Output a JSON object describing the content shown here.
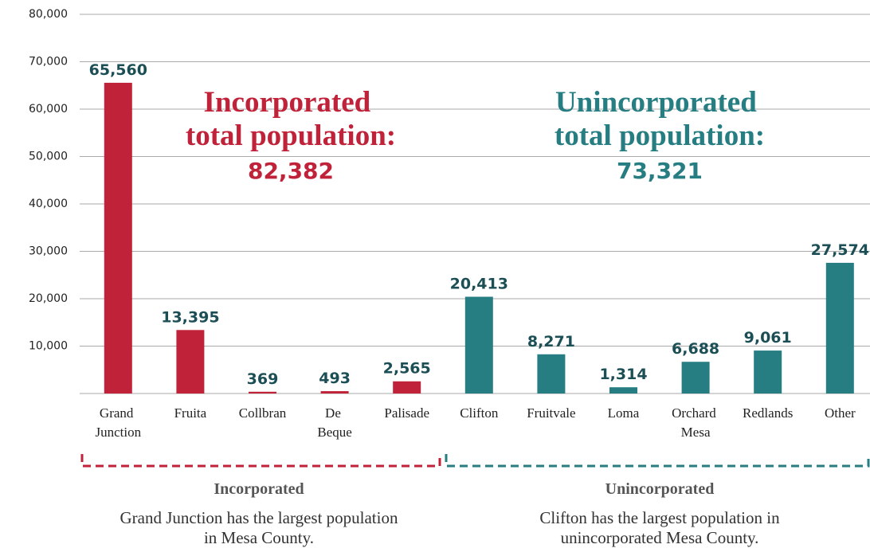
{
  "chart_data": {
    "type": "bar",
    "categories": [
      "Grand Junction",
      "Fruita",
      "Collbran",
      "De Beque",
      "Palisade",
      "Clifton",
      "Fruitvale",
      "Loma",
      "Orchard Mesa",
      "Redlands",
      "Other"
    ],
    "values": [
      65560,
      13395,
      369,
      493,
      2565,
      20413,
      8271,
      1314,
      6688,
      9061,
      27574
    ],
    "value_labels": [
      "65,560",
      "13,395",
      "369",
      "493",
      "2,565",
      "20,413",
      "8,271",
      "1,314",
      "6,688",
      "9,061",
      "27,574"
    ],
    "colors": [
      "#c0223a",
      "#c0223a",
      "#c0223a",
      "#c0223a",
      "#c0223a",
      "#267d82",
      "#267d82",
      "#267d82",
      "#267d82",
      "#267d82",
      "#267d82"
    ],
    "ylim": [
      0,
      80000
    ],
    "yticks": [
      {
        "value": 10000,
        "label": "10,000"
      },
      {
        "value": 20000,
        "label": "20,000"
      },
      {
        "value": 30000,
        "label": "30,000"
      },
      {
        "value": 40000,
        "label": "40,000"
      },
      {
        "value": 50000,
        "label": "50,000"
      },
      {
        "value": 60000,
        "label": "60,000"
      },
      {
        "value": 70000,
        "label": "70,000"
      },
      {
        "value": 80000,
        "label": "80,000"
      }
    ],
    "grid": true,
    "groups": [
      {
        "name": "Incorporated",
        "color": "#c0223a",
        "total_label": "Incorporated total population:",
        "total": "82,382",
        "description": "Grand Junction has the largest population in Mesa County."
      },
      {
        "name": "Unincorporated",
        "color": "#267d82",
        "total_label": "Unincorporated total population:",
        "total": "73,321",
        "description": "Clifton has the largest population in unincorporated Mesa County."
      }
    ]
  }
}
